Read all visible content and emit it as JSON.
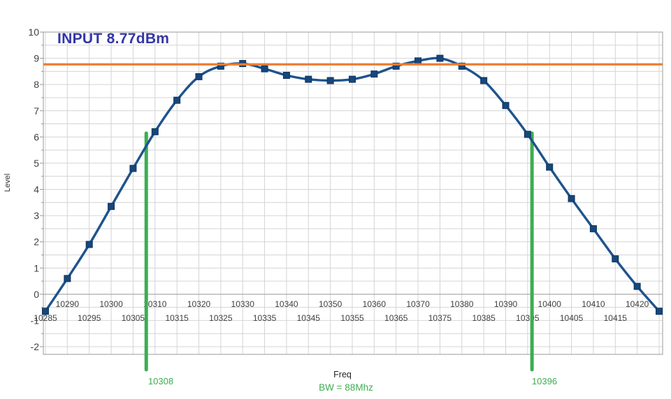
{
  "chart_data": {
    "type": "line",
    "title": "INPUT 8.77dBm",
    "xlabel": "Freq",
    "ylabel": "Level",
    "x": [
      10285,
      10290,
      10295,
      10300,
      10305,
      10310,
      10315,
      10320,
      10325,
      10330,
      10335,
      10340,
      10345,
      10350,
      10355,
      10360,
      10365,
      10370,
      10375,
      10380,
      10385,
      10390,
      10395,
      10400,
      10405,
      10410,
      10415,
      10420,
      10425
    ],
    "series": [
      {
        "name": "Level",
        "values": [
          -0.65,
          0.6,
          1.9,
          3.35,
          4.8,
          6.2,
          7.4,
          8.3,
          8.7,
          8.8,
          8.6,
          8.35,
          8.2,
          8.15,
          8.2,
          8.4,
          8.7,
          8.9,
          9.0,
          8.7,
          8.15,
          7.2,
          6.1,
          4.85,
          3.65,
          2.5,
          1.35,
          0.3,
          -0.65
        ],
        "marker": "square"
      }
    ],
    "xlim": [
      10285,
      10425
    ],
    "ylim": [
      -2,
      10
    ],
    "x_grid_step": 5,
    "y_grid_step": 0.5,
    "x_tick_labels": [
      10285,
      10290,
      10295,
      10300,
      10305,
      10310,
      10315,
      10320,
      10325,
      10330,
      10335,
      10340,
      10345,
      10350,
      10355,
      10360,
      10365,
      10370,
      10375,
      10380,
      10385,
      10390,
      10395,
      10400,
      10405,
      10410,
      10415,
      10420
    ],
    "y_tick_labels": [
      10,
      9,
      8,
      7,
      6,
      5,
      4,
      3,
      2,
      1,
      0,
      -1,
      -2
    ],
    "grid": true,
    "legend": "none",
    "reference_line": {
      "value": 8.77
    },
    "annotations": {
      "band_edges": [
        {
          "x": 10308,
          "label": "10308"
        },
        {
          "x": 10396,
          "label": "10396"
        }
      ],
      "bandwidth_label": "BW = 88Mhz"
    }
  },
  "colors": {
    "series_line": "#1e538c",
    "marker_fill": "#174679",
    "marker_stroke": "#0d3564",
    "reference_line": "#ED7D31",
    "annotation_green": "#3cae51",
    "title": "#3236a8",
    "gridline": "#d4d4d4",
    "plot_border": "#ababab",
    "zero_axis": "#9e9e9e",
    "tick": "#999999"
  }
}
